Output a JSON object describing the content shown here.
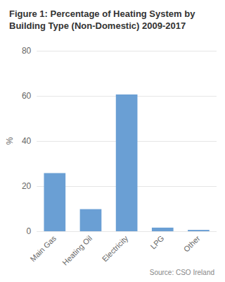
{
  "chart_data": {
    "type": "bar",
    "title": "Figure 1: Percentage of Heating System by Building Type (Non-Domestic) 2009-2017",
    "categories": [
      "Main Gas",
      "Heating Oil",
      "Electricity",
      "LPG",
      "Other"
    ],
    "values": [
      25.8,
      9.8,
      60.6,
      1.6,
      0.6
    ],
    "color": "#6a9fd4",
    "ylabel": "%",
    "source": "Source: CSO Ireland",
    "ylim": [
      0,
      80
    ],
    "yticks": [
      0,
      20,
      40,
      60,
      80
    ],
    "grid": true
  }
}
